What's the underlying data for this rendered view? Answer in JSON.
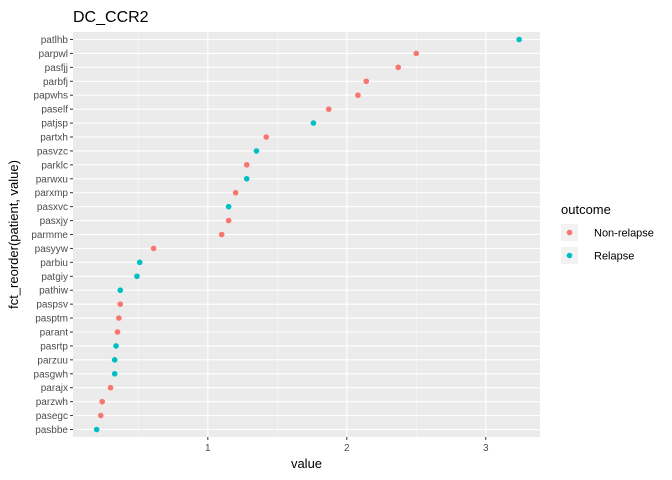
{
  "chart_data": {
    "type": "scatter",
    "title": "DC_CCR2",
    "xlabel": "value",
    "ylabel": "fct_reorder(patient, value)",
    "xlim": [
      0.03,
      3.39
    ],
    "x_ticks": [
      1,
      2,
      3
    ],
    "x_tick_labels": [
      "1",
      "2",
      "3"
    ],
    "grid": true,
    "legend": {
      "title": "outcome",
      "position": "right",
      "entries": [
        {
          "label": "Non-relapse",
          "color": "#F8766D"
        },
        {
          "label": "Relapse",
          "color": "#00BFC4"
        }
      ]
    },
    "categories": [
      "patlhb",
      "parpwl",
      "pasfjj",
      "parbfj",
      "papwhs",
      "paself",
      "patjsp",
      "partxh",
      "pasvzc",
      "parklc",
      "parwxu",
      "parxmp",
      "pasxvc",
      "pasxjy",
      "parmme",
      "pasyyw",
      "parbiu",
      "patgiy",
      "pathiw",
      "paspsv",
      "pasptm",
      "parant",
      "pasrtp",
      "parzuu",
      "pasgwh",
      "parajx",
      "parzwh",
      "pasegc",
      "pasbbe"
    ],
    "points": [
      {
        "patient": "patlhb",
        "value": 3.24,
        "outcome": "Relapse"
      },
      {
        "patient": "parpwl",
        "value": 2.5,
        "outcome": "Non-relapse"
      },
      {
        "patient": "pasfjj",
        "value": 2.37,
        "outcome": "Non-relapse"
      },
      {
        "patient": "parbfj",
        "value": 2.14,
        "outcome": "Non-relapse"
      },
      {
        "patient": "papwhs",
        "value": 2.08,
        "outcome": "Non-relapse"
      },
      {
        "patient": "paself",
        "value": 1.87,
        "outcome": "Non-relapse"
      },
      {
        "patient": "patjsp",
        "value": 1.76,
        "outcome": "Relapse"
      },
      {
        "patient": "partxh",
        "value": 1.42,
        "outcome": "Non-relapse"
      },
      {
        "patient": "pasvzc",
        "value": 1.35,
        "outcome": "Relapse"
      },
      {
        "patient": "parklc",
        "value": 1.28,
        "outcome": "Non-relapse"
      },
      {
        "patient": "parwxu",
        "value": 1.28,
        "outcome": "Relapse"
      },
      {
        "patient": "parxmp",
        "value": 1.2,
        "outcome": "Non-relapse"
      },
      {
        "patient": "pasxvc",
        "value": 1.15,
        "outcome": "Relapse"
      },
      {
        "patient": "pasxjy",
        "value": 1.15,
        "outcome": "Non-relapse"
      },
      {
        "patient": "parmme",
        "value": 1.1,
        "outcome": "Non-relapse"
      },
      {
        "patient": "pasyyw",
        "value": 0.61,
        "outcome": "Non-relapse"
      },
      {
        "patient": "parbiu",
        "value": 0.51,
        "outcome": "Relapse"
      },
      {
        "patient": "patgiy",
        "value": 0.49,
        "outcome": "Relapse"
      },
      {
        "patient": "pathiw",
        "value": 0.37,
        "outcome": "Relapse"
      },
      {
        "patient": "paspsv",
        "value": 0.37,
        "outcome": "Non-relapse"
      },
      {
        "patient": "pasptm",
        "value": 0.36,
        "outcome": "Non-relapse"
      },
      {
        "patient": "parant",
        "value": 0.35,
        "outcome": "Non-relapse"
      },
      {
        "patient": "pasrtp",
        "value": 0.34,
        "outcome": "Relapse"
      },
      {
        "patient": "parzuu",
        "value": 0.33,
        "outcome": "Relapse"
      },
      {
        "patient": "pasgwh",
        "value": 0.33,
        "outcome": "Relapse"
      },
      {
        "patient": "parajx",
        "value": 0.3,
        "outcome": "Non-relapse"
      },
      {
        "patient": "parzwh",
        "value": 0.24,
        "outcome": "Non-relapse"
      },
      {
        "patient": "pasegc",
        "value": 0.23,
        "outcome": "Non-relapse"
      },
      {
        "patient": "pasbbe",
        "value": 0.2,
        "outcome": "Relapse"
      }
    ]
  }
}
